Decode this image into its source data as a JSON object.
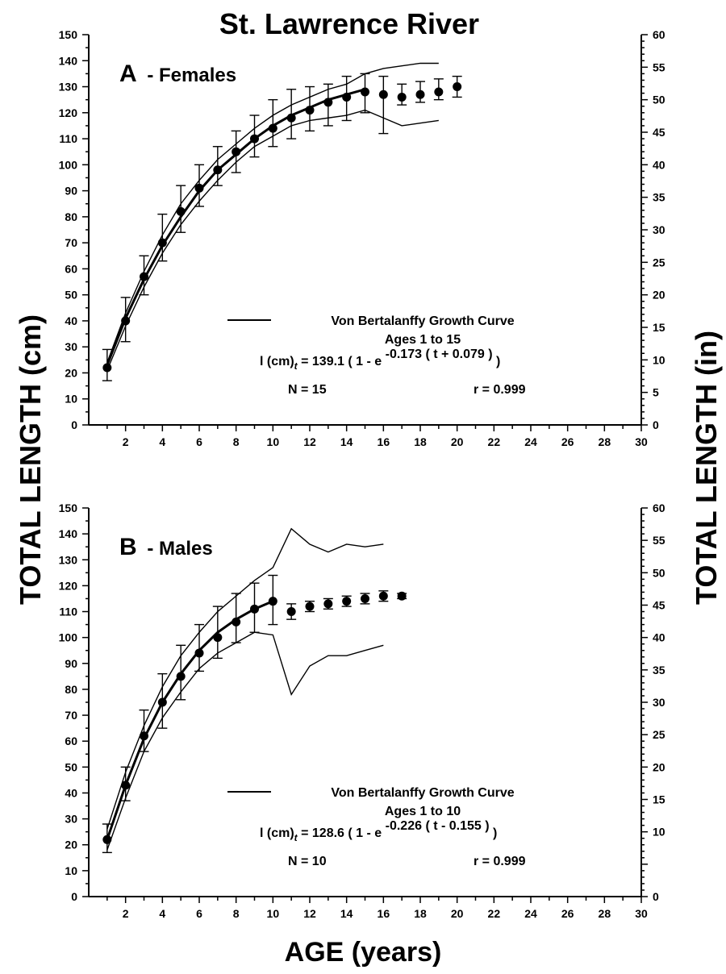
{
  "figure": {
    "title": "St. Lawrence River",
    "ylabel_left": "TOTAL LENGTH (cm)",
    "ylabel_right": "TOTAL LENGTH (in)",
    "xlabel": "AGE (years)",
    "colors": {
      "ink": "#000000",
      "background": "#ffffff"
    }
  },
  "chart_data": [
    {
      "type": "line",
      "panel_label": "A",
      "panel_name": "- Females",
      "xlim": [
        0,
        30
      ],
      "x_ticks": [
        2,
        4,
        6,
        8,
        10,
        12,
        14,
        16,
        18,
        20,
        22,
        24,
        26,
        28,
        30
      ],
      "ylim": [
        0,
        150
      ],
      "y_ticks": [
        0,
        10,
        20,
        30,
        40,
        50,
        60,
        70,
        80,
        90,
        100,
        110,
        120,
        130,
        140,
        150
      ],
      "y2lim": [
        0,
        60
      ],
      "y2_ticks": [
        0,
        5,
        10,
        15,
        20,
        25,
        30,
        35,
        40,
        45,
        50,
        55,
        60
      ],
      "grid": false,
      "legend": {
        "placement": "center-right",
        "entry": "Von Bertalanffy Growth Curve",
        "ages": "Ages 1 to 15",
        "eq_lhs": "l (cm)",
        "eq_sub": "t",
        "eq_mid": "= 139.1 ( 1 - e",
        "eq_exp": "-0.173 ( t + 0.079 )",
        "eq_close": ")",
        "n_text": "N = 15",
        "r_text": "r = 0.999"
      },
      "observed": {
        "x": [
          1,
          2,
          3,
          4,
          5,
          6,
          7,
          8,
          9,
          10,
          11,
          12,
          13,
          14,
          15,
          16,
          17,
          18,
          19,
          20
        ],
        "mean": [
          22,
          40,
          57,
          70,
          82,
          91,
          98,
          105,
          110,
          114,
          118,
          121,
          124,
          126,
          128,
          127,
          126,
          127,
          128,
          130
        ],
        "low": [
          17,
          32,
          50,
          63,
          74,
          84,
          92,
          97,
          103,
          107,
          110,
          113,
          115,
          117,
          120,
          112,
          123,
          124,
          125,
          126
        ],
        "high": [
          29,
          49,
          65,
          81,
          92,
          100,
          107,
          113,
          119,
          125,
          129,
          130,
          131,
          134,
          135,
          134,
          131,
          132,
          133,
          134
        ]
      },
      "fitted": {
        "x": [
          1,
          2,
          3,
          4,
          5,
          6,
          7,
          8,
          9,
          10,
          11,
          12,
          13,
          14,
          15
        ],
        "values": [
          23,
          41,
          56,
          69,
          80,
          90,
          98,
          104,
          110,
          115,
          119,
          122,
          125,
          127,
          129
        ]
      },
      "bounds": {
        "x": [
          1,
          2,
          3,
          4,
          5,
          6,
          7,
          8,
          9,
          10,
          11,
          12,
          13,
          14,
          15,
          16,
          17,
          18,
          19
        ],
        "upper": [
          24,
          43,
          59,
          73,
          85,
          94,
          102,
          108,
          114,
          119,
          123,
          126,
          129,
          131,
          135,
          137,
          138,
          139,
          139
        ],
        "lower": [
          21,
          38,
          53,
          66,
          77,
          86,
          94,
          101,
          107,
          111,
          115,
          117,
          118,
          119,
          121,
          118,
          115,
          116,
          117
        ]
      }
    },
    {
      "type": "line",
      "panel_label": "B",
      "panel_name": "- Males",
      "xlim": [
        0,
        30
      ],
      "x_ticks": [
        2,
        4,
        6,
        8,
        10,
        12,
        14,
        16,
        18,
        20,
        22,
        24,
        26,
        28,
        30
      ],
      "ylim": [
        0,
        150
      ],
      "y_ticks": [
        0,
        10,
        20,
        30,
        40,
        50,
        60,
        70,
        80,
        90,
        100,
        110,
        120,
        130,
        140,
        150
      ],
      "y2lim": [
        0,
        60
      ],
      "y2_ticks": [
        0,
        10,
        15,
        20,
        25,
        30,
        35,
        40,
        45,
        50,
        55,
        60
      ],
      "grid": false,
      "legend": {
        "placement": "center-right",
        "entry": "Von Bertalanffy Growth Curve",
        "ages": "Ages 1 to 10",
        "eq_lhs": "l (cm)",
        "eq_sub": "t",
        "eq_mid": "= 128.6 ( 1 - e",
        "eq_exp": "-0.226 ( t - 0.155 )",
        "eq_close": ")",
        "n_text": "N = 10",
        "r_text": "r = 0.999"
      },
      "observed": {
        "x": [
          1,
          2,
          3,
          4,
          5,
          6,
          7,
          8,
          9,
          10,
          11,
          12,
          13,
          14,
          15,
          16,
          17
        ],
        "mean": [
          22,
          43,
          62,
          75,
          85,
          94,
          100,
          106,
          111,
          114,
          110,
          112,
          113,
          114,
          115,
          116,
          116
        ],
        "low": [
          17,
          37,
          56,
          65,
          76,
          87,
          92,
          98,
          102,
          105,
          107,
          110,
          111,
          112,
          113,
          114,
          115
        ],
        "high": [
          28,
          50,
          72,
          86,
          97,
          105,
          112,
          117,
          121,
          124,
          113,
          114,
          115,
          116,
          117,
          118,
          117
        ]
      },
      "fitted": {
        "x": [
          1,
          2,
          3,
          4,
          5,
          6,
          7,
          8,
          9,
          10
        ],
        "values": [
          22,
          43,
          61,
          75,
          86,
          95,
          102,
          107,
          111,
          114
        ]
      },
      "bounds": {
        "x": [
          1,
          2,
          3,
          4,
          5,
          6,
          7,
          8,
          9,
          10,
          11,
          12,
          13,
          14,
          15,
          16
        ],
        "upper": [
          26,
          48,
          66,
          81,
          93,
          102,
          110,
          116,
          122,
          127,
          142,
          136,
          133,
          136,
          135,
          136
        ],
        "lower": [
          18,
          38,
          56,
          69,
          79,
          88,
          94,
          98,
          102,
          101,
          78,
          89,
          93,
          93,
          95,
          97
        ]
      }
    }
  ]
}
